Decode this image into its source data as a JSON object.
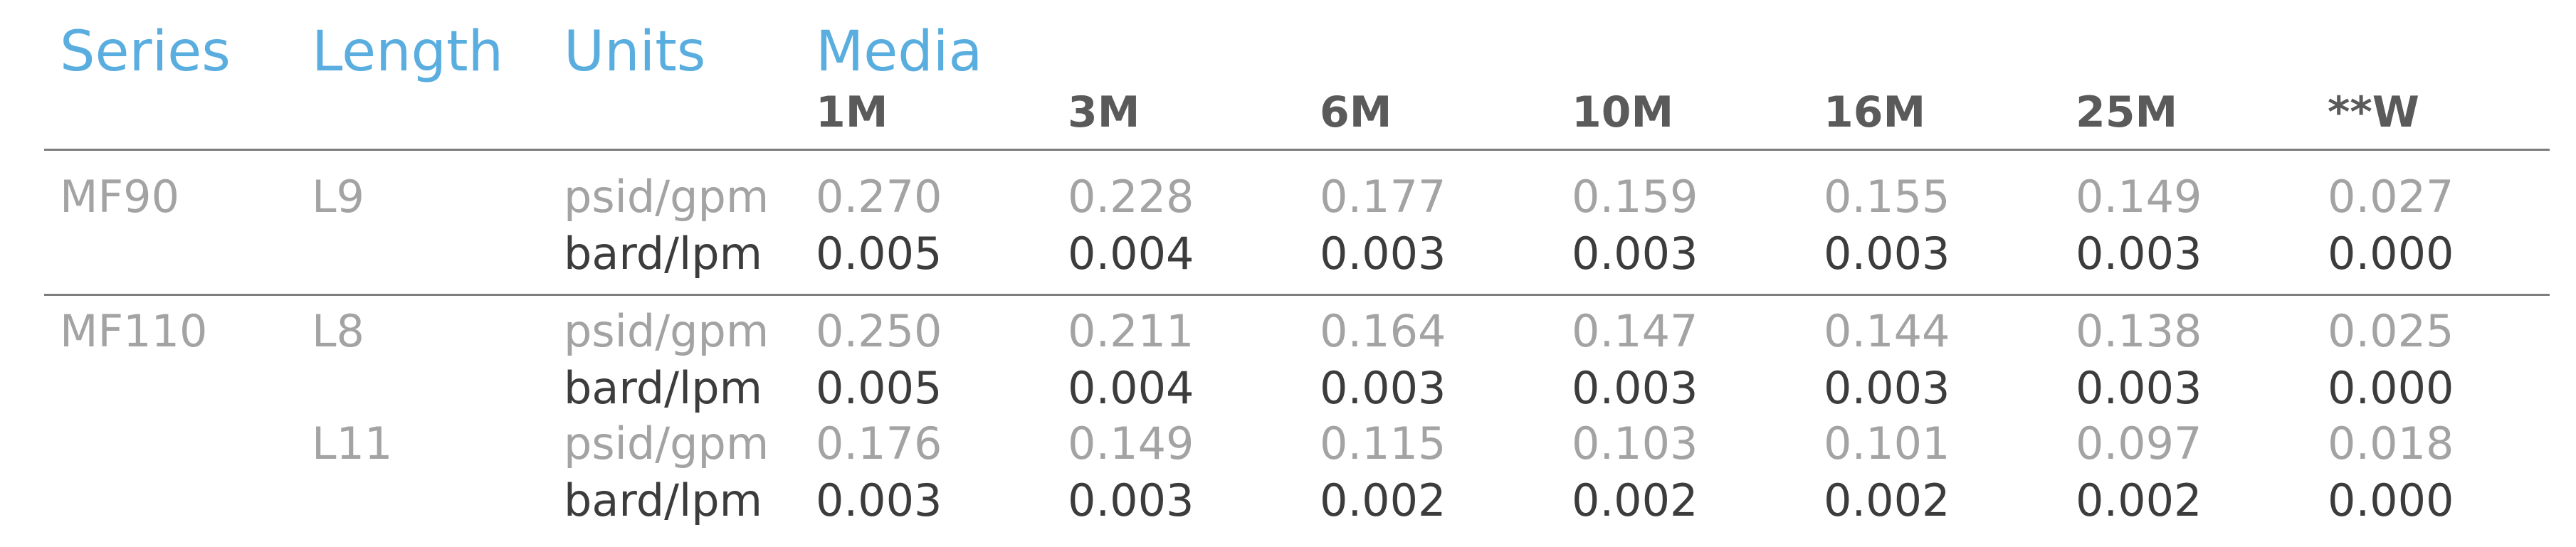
{
  "table": {
    "headers": {
      "series": "Series",
      "length": "Length",
      "units": "Units",
      "media": "Media"
    },
    "media_columns": [
      "1M",
      "3M",
      "6M",
      "10M",
      "16M",
      "25M",
      "**W"
    ],
    "groups": [
      {
        "series": "MF90",
        "lengths": [
          {
            "length": "L9",
            "rows": [
              {
                "unit": "psid/gpm",
                "values": [
                  "0.270",
                  "0.228",
                  "0.177",
                  "0.159",
                  "0.155",
                  "0.149",
                  "0.027"
                ]
              },
              {
                "unit": "bard/lpm",
                "values": [
                  "0.005",
                  "0.004",
                  "0.003",
                  "0.003",
                  "0.003",
                  "0.003",
                  "0.000"
                ]
              }
            ]
          }
        ]
      },
      {
        "series": "MF110",
        "lengths": [
          {
            "length": "L8",
            "rows": [
              {
                "unit": "psid/gpm",
                "values": [
                  "0.250",
                  "0.211",
                  "0.164",
                  "0.147",
                  "0.144",
                  "0.138",
                  "0.025"
                ]
              },
              {
                "unit": "bard/lpm",
                "values": [
                  "0.005",
                  "0.004",
                  "0.003",
                  "0.003",
                  "0.003",
                  "0.003",
                  "0.000"
                ]
              }
            ]
          },
          {
            "length": "L11",
            "rows": [
              {
                "unit": "psid/gpm",
                "values": [
                  "0.176",
                  "0.149",
                  "0.115",
                  "0.103",
                  "0.101",
                  "0.097",
                  "0.018"
                ]
              },
              {
                "unit": "bard/lpm",
                "values": [
                  "0.003",
                  "0.003",
                  "0.002",
                  "0.002",
                  "0.002",
                  "0.002",
                  "0.000"
                ]
              }
            ]
          }
        ]
      }
    ]
  },
  "colors": {
    "header_blue": "#5aaedf",
    "light_gray_text": "#a3a3a3",
    "dark_text": "#3c3c3c",
    "rule_gray": "#7d7d7d"
  }
}
